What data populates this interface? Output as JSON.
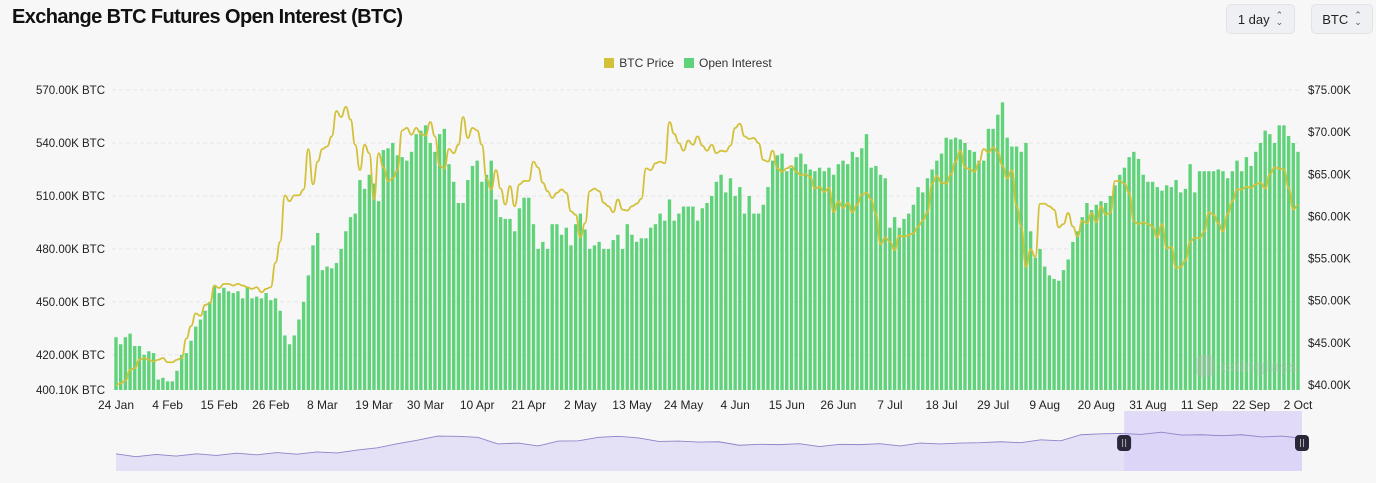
{
  "header": {
    "title": "Exchange BTC Futures Open Interest (BTC)",
    "interval_select": "1 day",
    "unit_select": "BTC"
  },
  "watermark": "coinglass",
  "chart_data": {
    "type": "bar+line",
    "legend": [
      {
        "name": "BTC Price",
        "color": "#d4c13a"
      },
      {
        "name": "Open Interest",
        "color": "#5fd27a"
      }
    ],
    "legend_position": "top",
    "grid": true,
    "x_tick_labels": [
      "24 Jan",
      "4 Feb",
      "15 Feb",
      "26 Feb",
      "8 Mar",
      "19 Mar",
      "30 Mar",
      "10 Apr",
      "21 Apr",
      "2 May",
      "13 May",
      "24 May",
      "4 Jun",
      "15 Jun",
      "26 Jun",
      "7 Jul",
      "18 Jul",
      "29 Jul",
      "9 Aug",
      "20 Aug",
      "31 Aug",
      "11 Sep",
      "22 Sep",
      "2 Oct"
    ],
    "x_tick_interval_days": 11,
    "left_axis": {
      "unit": "K BTC",
      "ylim": [
        400.1,
        570
      ],
      "ticks": [
        400.1,
        420,
        450,
        480,
        510,
        540,
        570
      ],
      "tick_labels": [
        "400.10K BTC",
        "420.00K BTC",
        "450.00K BTC",
        "480.00K BTC",
        "510.00K BTC",
        "540.00K BTC",
        "570.00K BTC"
      ]
    },
    "right_axis": {
      "unit": "K USD",
      "ylim": [
        40,
        75
      ],
      "ticks": [
        40,
        45,
        50,
        55,
        60,
        65,
        70,
        75
      ],
      "tick_labels": [
        "$40.00K",
        "$45.00K",
        "$50.00K",
        "$55.00K",
        "$60.00K",
        "$65.00K",
        "$70.00K",
        "$75.00K"
      ]
    },
    "series": [
      {
        "name": "Open Interest",
        "type": "bar",
        "axis": "left",
        "values": [
          430,
          426,
          430,
          432,
          425,
          425,
          420,
          422,
          421,
          406,
          407,
          405,
          405,
          411,
          420,
          421,
          428,
          436,
          440,
          445,
          450,
          459,
          455,
          458,
          456,
          455,
          456,
          452,
          458,
          452,
          453,
          452,
          455,
          451,
          452,
          445,
          431,
          426,
          431,
          440,
          450,
          465,
          482,
          489,
          468,
          470,
          469,
          472,
          480,
          490,
          498,
          500,
          519,
          514,
          522,
          517,
          507,
          536,
          537,
          540,
          533,
          532,
          530,
          535,
          545,
          547,
          550,
          540,
          535,
          545,
          548,
          528,
          518,
          506,
          506,
          519,
          527,
          530,
          518,
          522,
          530,
          508,
          498,
          497,
          497,
          490,
          503,
          509,
          509,
          494,
          480,
          484,
          480,
          494,
          494,
          488,
          492,
          482,
          494,
          500,
          491,
          480,
          482,
          484,
          480,
          480,
          485,
          488,
          480,
          494,
          488,
          484,
          486,
          486,
          492,
          494,
          500,
          496,
          508,
          496,
          500,
          504,
          504,
          504,
          496,
          503,
          506,
          510,
          518,
          522,
          512,
          520,
          510,
          515,
          500,
          510,
          500,
          500,
          505,
          515,
          530,
          533,
          534,
          524,
          526,
          532,
          534,
          528,
          525,
          524,
          526,
          524,
          526,
          522,
          528,
          530,
          528,
          535,
          532,
          537,
          545,
          526,
          527,
          522,
          520,
          492,
          498,
          492,
          497,
          500,
          505,
          515,
          512,
          520,
          525,
          530,
          534,
          543,
          542,
          543,
          542,
          540,
          536,
          535,
          530,
          530,
          548,
          548,
          556,
          563,
          543,
          538,
          538,
          535,
          540,
          490,
          475,
          480,
          470,
          465,
          463,
          462,
          468,
          474,
          484,
          490,
          498,
          506,
          502,
          505,
          507,
          506,
          510,
          516,
          522,
          526,
          532,
          535,
          531,
          522,
          518,
          518,
          515,
          513,
          516,
          515,
          519,
          512,
          514,
          528,
          512,
          524,
          524,
          524,
          524,
          525,
          524,
          520,
          524,
          530,
          524,
          532,
          527,
          535,
          540,
          547,
          545,
          540,
          550,
          550,
          544,
          540,
          535
        ]
      },
      {
        "name": "BTC Price",
        "type": "line",
        "axis": "right",
        "values": [
          40,
          40.2,
          40.5,
          41.8,
          42,
          43,
          43.2,
          43,
          42.8,
          43,
          43.2,
          42.7,
          42.7,
          43,
          43.2,
          45.5,
          47,
          48.5,
          48.2,
          49.5,
          49.7,
          51.8,
          51.5,
          52,
          52,
          51.8,
          52,
          51.8,
          51.6,
          51.4,
          51.6,
          51,
          51.4,
          51.6,
          54.5,
          57,
          62.5,
          61.8,
          62.5,
          62.5,
          63.2,
          68,
          63.8,
          66.5,
          68,
          68.3,
          69.5,
          72.5,
          71.8,
          73,
          71.5,
          68.5,
          65.5,
          68.5,
          67.5,
          62,
          67.5,
          65.8,
          64.2,
          64.5,
          65.5,
          70.2,
          70.5,
          69.7,
          70.5,
          69.8,
          69.6,
          71.2,
          69.5,
          66,
          65.7,
          68,
          67.5,
          68.5,
          71.8,
          69.3,
          70.5,
          70.2,
          68.5,
          64.5,
          63.2,
          65.5,
          63.3,
          61.4,
          63.6,
          61.2,
          63.8,
          64.2,
          64.2,
          66.5,
          65.8,
          64,
          63,
          62.2,
          62.8,
          63.2,
          62.8,
          60.6,
          60.2,
          57.5,
          59.2,
          63,
          63.3,
          63,
          61.6,
          61.2,
          60.5,
          62,
          60.8,
          60.7,
          61.2,
          61.5,
          62.1,
          65.7,
          65.5,
          66.3,
          66.5,
          66.3,
          71.2,
          69.8,
          68.7,
          67.8,
          69,
          68.5,
          69.5,
          68.4,
          67.8,
          68.5,
          67.5,
          67.8,
          67.7,
          68.4,
          70.5,
          71,
          69.5,
          69.2,
          69.3,
          68.7,
          66.7,
          66.5,
          67.8,
          65.7,
          65.3,
          65.7,
          66,
          65.3,
          64.9,
          65,
          64.7,
          63.3,
          63.5,
          62.9,
          63.4,
          60.5,
          61.8,
          61,
          61.6,
          60.5,
          61.4,
          62.6,
          62.8,
          62,
          60.3,
          56.7,
          57.5,
          57,
          56,
          57.7,
          57.6,
          57.8,
          58,
          58.8,
          59.5,
          60.5,
          63.9,
          64.8,
          64,
          63.9,
          65,
          66.5,
          67.8,
          65.8,
          65.6,
          65.3,
          66.4,
          68,
          67.6,
          68.2,
          67.6,
          66,
          64.5,
          65.5,
          61.2,
          58.8,
          54,
          56.1,
          55.2,
          61.5,
          61.5,
          61.2,
          60.8,
          58.7,
          59.1,
          60.4,
          58.8,
          57.6,
          59.5,
          59.2,
          60.4,
          59.3,
          61.2,
          60.2,
          60.4,
          64.2,
          64.2,
          63.9,
          62.8,
          59.4,
          59.1,
          59.3,
          59.1,
          58.8,
          57.5,
          59.1,
          56.2,
          56.4,
          53.9,
          54,
          54.8,
          57,
          57.5,
          57.4,
          58.2,
          60.5,
          60.2,
          59.2,
          58.2,
          60.3,
          61.8,
          63.2,
          63.2,
          63.5,
          63.4,
          63.8,
          64,
          63.3,
          65,
          65.8,
          65.7,
          65.6,
          63.4,
          60.8,
          61.4
        ]
      }
    ],
    "overview": {
      "values": [
        10,
        8,
        9,
        9,
        10,
        10,
        11,
        11,
        12,
        12,
        13,
        14,
        16,
        22,
        26,
        34,
        38,
        40,
        36,
        28,
        27,
        25,
        30,
        33,
        36,
        40,
        35,
        32,
        30,
        31,
        29,
        26,
        25,
        27,
        26,
        24,
        25,
        27,
        26,
        25,
        27,
        28,
        27,
        30,
        29,
        30,
        32,
        33,
        40,
        44,
        42,
        43,
        44,
        42,
        40,
        41,
        40,
        39,
        38,
        37
      ],
      "selection_start_pct": 85,
      "selection_end_pct": 100,
      "fill_color": "#e4e0f5",
      "selection_color": "#d9d1f7",
      "line_color": "#8c84c9"
    }
  }
}
